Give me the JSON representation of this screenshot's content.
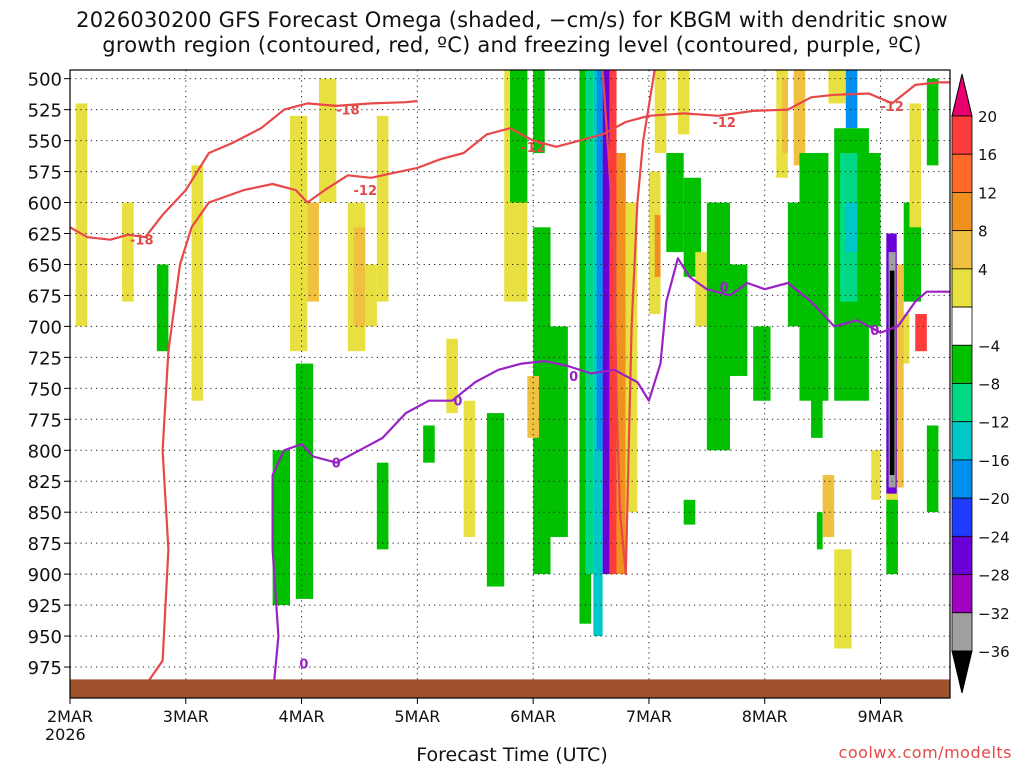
{
  "header": {
    "title_line1": "2026030200 GFS Forecast Omega (shaded, −cm/s) for KBGM with dendritic snow",
    "title_line2": "growth region (contoured, red, ºC) and freezing level (contoured, purple, ºC)"
  },
  "footer": {
    "watermark": "coolwx.com/modelts"
  },
  "chart_data": {
    "type": "heatmap",
    "xlabel": "Forecast Time (UTC)",
    "x_ticks": [
      "2MAR",
      "3MAR",
      "4MAR",
      "5MAR",
      "6MAR",
      "7MAR",
      "8MAR",
      "9MAR"
    ],
    "x_year_label": "2026",
    "x_range_days": [
      0,
      7.6
    ],
    "y_ticks": [
      500,
      525,
      550,
      575,
      600,
      625,
      650,
      675,
      700,
      725,
      750,
      775,
      800,
      825,
      850,
      875,
      900,
      925,
      950,
      975
    ],
    "y_range_hpa": [
      493,
      1000
    ],
    "grid": true,
    "colorbar": {
      "labels": [
        "20",
        "16",
        "12",
        "8",
        "4",
        "−4",
        "−8",
        "−12",
        "−16",
        "−20",
        "−24",
        "−28",
        "−32",
        "−36"
      ],
      "colors": [
        "#e8006e",
        "#ff3c3c",
        "#ff6a28",
        "#f0901e",
        "#f0c040",
        "#e8e040",
        "#ffffff",
        "#00c000",
        "#00d884",
        "#00c8c8",
        "#0090f0",
        "#1e3cff",
        "#6a00d8",
        "#a000c0",
        "#a0a0a0",
        "#000000"
      ]
    },
    "omega_regions": [
      {
        "x": [
          0.05,
          0.15
        ],
        "p": [
          520,
          700
        ],
        "c": "#e8e040"
      },
      {
        "x": [
          0.45,
          0.55
        ],
        "p": [
          600,
          680
        ],
        "c": "#e8e040"
      },
      {
        "x": [
          0.75,
          0.85
        ],
        "p": [
          650,
          720
        ],
        "c": "#00c000"
      },
      {
        "x": [
          1.05,
          1.15
        ],
        "p": [
          570,
          760
        ],
        "c": "#e8e040"
      },
      {
        "x": [
          1.9,
          2.05
        ],
        "p": [
          530,
          720
        ],
        "c": "#e8e040"
      },
      {
        "x": [
          2.05,
          2.15
        ],
        "p": [
          600,
          680
        ],
        "c": "#f0c040"
      },
      {
        "x": [
          2.15,
          2.3
        ],
        "p": [
          500,
          600
        ],
        "c": "#e8e040"
      },
      {
        "x": [
          1.75,
          1.9
        ],
        "p": [
          800,
          925
        ],
        "c": "#00c000"
      },
      {
        "x": [
          1.95,
          2.1
        ],
        "p": [
          730,
          920
        ],
        "c": "#00c000"
      },
      {
        "x": [
          2.4,
          2.55
        ],
        "p": [
          600,
          720
        ],
        "c": "#e8e040"
      },
      {
        "x": [
          2.45,
          2.55
        ],
        "p": [
          620,
          700
        ],
        "c": "#f0c040"
      },
      {
        "x": [
          2.65,
          2.75
        ],
        "p": [
          810,
          880
        ],
        "c": "#00c000"
      },
      {
        "x": [
          2.55,
          2.65
        ],
        "p": [
          650,
          700
        ],
        "c": "#e8e040"
      },
      {
        "x": [
          2.65,
          2.75
        ],
        "p": [
          530,
          680
        ],
        "c": "#e8e040"
      },
      {
        "x": [
          3.25,
          3.35
        ],
        "p": [
          710,
          770
        ],
        "c": "#e8e040"
      },
      {
        "x": [
          3.4,
          3.5
        ],
        "p": [
          760,
          870
        ],
        "c": "#e8e040"
      },
      {
        "x": [
          3.05,
          3.15
        ],
        "p": [
          780,
          810
        ],
        "c": "#00c000"
      },
      {
        "x": [
          3.6,
          3.75
        ],
        "p": [
          770,
          910
        ],
        "c": "#00c000"
      },
      {
        "x": [
          3.75,
          3.95
        ],
        "p": [
          493,
          680
        ],
        "c": "#e8e040"
      },
      {
        "x": [
          3.8,
          3.95
        ],
        "p": [
          493,
          600
        ],
        "c": "#00c000"
      },
      {
        "x": [
          4.0,
          4.1
        ],
        "p": [
          493,
          560
        ],
        "c": "#00c000"
      },
      {
        "x": [
          4.0,
          4.15
        ],
        "p": [
          620,
          900
        ],
        "c": "#00c000"
      },
      {
        "x": [
          3.95,
          4.05
        ],
        "p": [
          740,
          790
        ],
        "c": "#f0c040"
      },
      {
        "x": [
          4.15,
          4.3
        ],
        "p": [
          700,
          870
        ],
        "c": "#00c000"
      },
      {
        "x": [
          4.4,
          4.5
        ],
        "p": [
          493,
          940
        ],
        "c": "#00c000"
      },
      {
        "x": [
          4.45,
          4.52
        ],
        "p": [
          493,
          900
        ],
        "c": "#00d884"
      },
      {
        "x": [
          4.52,
          4.6
        ],
        "p": [
          493,
          950
        ],
        "c": "#00c8c8"
      },
      {
        "x": [
          4.55,
          4.6
        ],
        "p": [
          493,
          800
        ],
        "c": "#0090f0"
      },
      {
        "x": [
          4.6,
          4.66
        ],
        "p": [
          493,
          900
        ],
        "c": "#6a00d8"
      },
      {
        "x": [
          4.66,
          4.72
        ],
        "p": [
          493,
          900
        ],
        "c": "#ff3c3c"
      },
      {
        "x": [
          4.72,
          4.8
        ],
        "p": [
          560,
          900
        ],
        "c": "#f0901e"
      },
      {
        "x": [
          4.8,
          4.9
        ],
        "p": [
          600,
          850
        ],
        "c": "#e8e040"
      },
      {
        "x": [
          5.05,
          5.15
        ],
        "p": [
          493,
          560
        ],
        "c": "#e8e040"
      },
      {
        "x": [
          5.25,
          5.35
        ],
        "p": [
          493,
          545
        ],
        "c": "#e8e040"
      },
      {
        "x": [
          5.15,
          5.3
        ],
        "p": [
          560,
          640
        ],
        "c": "#00c000"
      },
      {
        "x": [
          5.3,
          5.45
        ],
        "p": [
          580,
          660
        ],
        "c": "#00c000"
      },
      {
        "x": [
          5.0,
          5.1
        ],
        "p": [
          575,
          690
        ],
        "c": "#e8e040"
      },
      {
        "x": [
          5.05,
          5.1
        ],
        "p": [
          610,
          660
        ],
        "c": "#f0901e"
      },
      {
        "x": [
          5.4,
          5.5
        ],
        "p": [
          640,
          700
        ],
        "c": "#e8e040"
      },
      {
        "x": [
          5.5,
          5.7
        ],
        "p": [
          600,
          800
        ],
        "c": "#00c000"
      },
      {
        "x": [
          5.7,
          5.85
        ],
        "p": [
          650,
          740
        ],
        "c": "#00c000"
      },
      {
        "x": [
          5.3,
          5.4
        ],
        "p": [
          840,
          860
        ],
        "c": "#00c000"
      },
      {
        "x": [
          5.9,
          6.05
        ],
        "p": [
          700,
          760
        ],
        "c": "#00c000"
      },
      {
        "x": [
          6.1,
          6.2
        ],
        "p": [
          493,
          580
        ],
        "c": "#e8e040"
      },
      {
        "x": [
          6.15,
          6.2
        ],
        "p": [
          500,
          560
        ],
        "c": "#f0c040"
      },
      {
        "x": [
          6.25,
          6.35
        ],
        "p": [
          493,
          570
        ],
        "c": "#f0c040"
      },
      {
        "x": [
          6.2,
          6.45
        ],
        "p": [
          600,
          700
        ],
        "c": "#00c000"
      },
      {
        "x": [
          6.3,
          6.55
        ],
        "p": [
          560,
          760
        ],
        "c": "#00c000"
      },
      {
        "x": [
          6.4,
          6.5
        ],
        "p": [
          730,
          790
        ],
        "c": "#00c000"
      },
      {
        "x": [
          6.45,
          6.5
        ],
        "p": [
          850,
          880
        ],
        "c": "#00c000"
      },
      {
        "x": [
          6.5,
          6.6
        ],
        "p": [
          820,
          870
        ],
        "c": "#f0c040"
      },
      {
        "x": [
          6.6,
          6.75
        ],
        "p": [
          880,
          960
        ],
        "c": "#e8e040"
      },
      {
        "x": [
          6.55,
          6.7
        ],
        "p": [
          493,
          520
        ],
        "c": "#e8e040"
      },
      {
        "x": [
          6.7,
          6.8
        ],
        "p": [
          493,
          540
        ],
        "c": "#0090f0"
      },
      {
        "x": [
          6.6,
          6.9
        ],
        "p": [
          540,
          760
        ],
        "c": "#00c000"
      },
      {
        "x": [
          6.65,
          6.9
        ],
        "p": [
          560,
          680
        ],
        "c": "#00d884"
      },
      {
        "x": [
          6.7,
          6.85
        ],
        "p": [
          600,
          640
        ],
        "c": "#00c8c8"
      },
      {
        "x": [
          6.8,
          7.0
        ],
        "p": [
          560,
          700
        ],
        "c": "#00c000"
      },
      {
        "x": [
          6.92,
          7.0
        ],
        "p": [
          800,
          840
        ],
        "c": "#e8e040"
      },
      {
        "x": [
          7.05,
          7.15
        ],
        "p": [
          800,
          880
        ],
        "c": "#e8e040"
      },
      {
        "x": [
          7.05,
          7.15
        ],
        "p": [
          840,
          900
        ],
        "c": "#00c000"
      },
      {
        "x": [
          7.2,
          7.35
        ],
        "p": [
          600,
          680
        ],
        "c": "#00c000"
      },
      {
        "x": [
          7.15,
          7.25
        ],
        "p": [
          690,
          730
        ],
        "c": "#e8e040"
      },
      {
        "x": [
          7.25,
          7.35
        ],
        "p": [
          520,
          620
        ],
        "c": "#e8e040"
      },
      {
        "x": [
          7.4,
          7.5
        ],
        "p": [
          500,
          570
        ],
        "c": "#00c000"
      },
      {
        "x": [
          7.1,
          7.2
        ],
        "p": [
          650,
          830
        ],
        "c": "#f0c040"
      },
      {
        "x": [
          7.3,
          7.4
        ],
        "p": [
          690,
          720
        ],
        "c": "#ff3c3c"
      },
      {
        "x": [
          7.05,
          7.14
        ],
        "p": [
          625,
          835
        ],
        "c": "#6a00d8"
      },
      {
        "x": [
          7.07,
          7.13
        ],
        "p": [
          640,
          830
        ],
        "c": "#a0a0a0"
      },
      {
        "x": [
          7.08,
          7.12
        ],
        "p": [
          655,
          820
        ],
        "c": "#000000"
      },
      {
        "x": [
          7.4,
          7.5
        ],
        "p": [
          780,
          850
        ],
        "c": "#00c000"
      }
    ],
    "ground_pressure_hpa": 985,
    "contour_labels": [
      {
        "t": "-18",
        "x": 0.62,
        "p": 630,
        "c": "#e24a4a"
      },
      {
        "t": "-18",
        "x": 2.4,
        "p": 525,
        "c": "#e24a4a"
      },
      {
        "t": "-12",
        "x": 2.55,
        "p": 590,
        "c": "#e24a4a"
      },
      {
        "t": "-12",
        "x": 4.0,
        "p": 555,
        "c": "#e24a4a"
      },
      {
        "t": "-12",
        "x": 5.65,
        "p": 535,
        "c": "#e24a4a"
      },
      {
        "t": "-12",
        "x": 7.1,
        "p": 522,
        "c": "#e24a4a"
      },
      {
        "t": "0",
        "x": 2.3,
        "p": 810,
        "c": "#9a22c4"
      },
      {
        "t": "0",
        "x": 3.35,
        "p": 760,
        "c": "#9a22c4"
      },
      {
        "t": "0",
        "x": 4.35,
        "p": 740,
        "c": "#9a22c4"
      },
      {
        "t": "0",
        "x": 5.65,
        "p": 668,
        "c": "#9a22c4"
      },
      {
        "t": "0",
        "x": 6.95,
        "p": 703,
        "c": "#9a22c4"
      },
      {
        "t": "0",
        "x": 2.02,
        "p": 972,
        "c": "#9a22c4"
      }
    ],
    "contours": [
      {
        "c": "#e84848",
        "pts": [
          [
            0,
            620
          ],
          [
            0.15,
            628
          ],
          [
            0.35,
            630
          ],
          [
            0.5,
            626
          ],
          [
            0.65,
            628
          ],
          [
            0.8,
            610
          ],
          [
            1.0,
            590
          ],
          [
            1.2,
            560
          ],
          [
            1.4,
            552
          ],
          [
            1.65,
            540
          ],
          [
            1.85,
            525
          ],
          [
            2.05,
            520
          ],
          [
            2.3,
            522
          ],
          [
            2.6,
            520
          ],
          [
            2.9,
            519
          ],
          [
            3.0,
            518
          ]
        ]
      },
      {
        "c": "#e84848",
        "pts": [
          [
            0.5,
            1000
          ],
          [
            0.65,
            990
          ],
          [
            0.8,
            970
          ],
          [
            0.85,
            880
          ],
          [
            0.8,
            800
          ],
          [
            0.85,
            720
          ],
          [
            0.95,
            650
          ],
          [
            1.05,
            620
          ],
          [
            1.2,
            600
          ],
          [
            1.5,
            590
          ],
          [
            1.75,
            585
          ],
          [
            1.95,
            590
          ],
          [
            2.05,
            600
          ],
          [
            2.2,
            590
          ],
          [
            2.4,
            578
          ],
          [
            2.6,
            580
          ],
          [
            2.8,
            576
          ],
          [
            3.0,
            572
          ],
          [
            3.2,
            565
          ],
          [
            3.4,
            560
          ],
          [
            3.6,
            545
          ],
          [
            3.8,
            540
          ],
          [
            4.0,
            550
          ],
          [
            4.2,
            555
          ],
          [
            4.4,
            550
          ],
          [
            4.6,
            545
          ],
          [
            4.8,
            535
          ],
          [
            5.0,
            530
          ],
          [
            5.3,
            528
          ],
          [
            5.6,
            530
          ],
          [
            5.9,
            526
          ],
          [
            6.2,
            525
          ],
          [
            6.4,
            515
          ],
          [
            6.6,
            513
          ],
          [
            6.9,
            512
          ],
          [
            7.1,
            520
          ],
          [
            7.3,
            505
          ],
          [
            7.5,
            503
          ],
          [
            7.6,
            503
          ]
        ]
      },
      {
        "c": "#e84848",
        "pts": [
          [
            4.6,
            493
          ],
          [
            4.65,
            560
          ],
          [
            4.7,
            640
          ],
          [
            4.72,
            760
          ],
          [
            4.75,
            850
          ],
          [
            4.8,
            900
          ],
          [
            4.85,
            700
          ],
          [
            4.9,
            600
          ],
          [
            4.95,
            550
          ],
          [
            5.05,
            493
          ]
        ]
      },
      {
        "c": "#9a22c4",
        "pts": [
          [
            1.75,
            1000
          ],
          [
            1.8,
            950
          ],
          [
            1.75,
            880
          ],
          [
            1.75,
            820
          ],
          [
            1.85,
            800
          ],
          [
            2.0,
            795
          ],
          [
            2.1,
            805
          ],
          [
            2.3,
            810
          ],
          [
            2.5,
            800
          ],
          [
            2.7,
            790
          ],
          [
            2.9,
            770
          ],
          [
            3.1,
            760
          ],
          [
            3.3,
            760
          ],
          [
            3.5,
            745
          ],
          [
            3.7,
            735
          ],
          [
            3.9,
            730
          ],
          [
            4.1,
            728
          ],
          [
            4.3,
            732
          ],
          [
            4.5,
            738
          ],
          [
            4.7,
            735
          ],
          [
            4.9,
            745
          ],
          [
            5.0,
            760
          ],
          [
            5.1,
            730
          ],
          [
            5.15,
            680
          ],
          [
            5.25,
            645
          ],
          [
            5.35,
            660
          ],
          [
            5.5,
            670
          ],
          [
            5.7,
            675
          ],
          [
            5.85,
            665
          ],
          [
            6.0,
            670
          ],
          [
            6.2,
            665
          ],
          [
            6.4,
            680
          ],
          [
            6.6,
            700
          ],
          [
            6.8,
            695
          ],
          [
            7.0,
            705
          ],
          [
            7.15,
            700
          ],
          [
            7.3,
            680
          ],
          [
            7.4,
            672
          ],
          [
            7.6,
            672
          ]
        ]
      }
    ]
  }
}
